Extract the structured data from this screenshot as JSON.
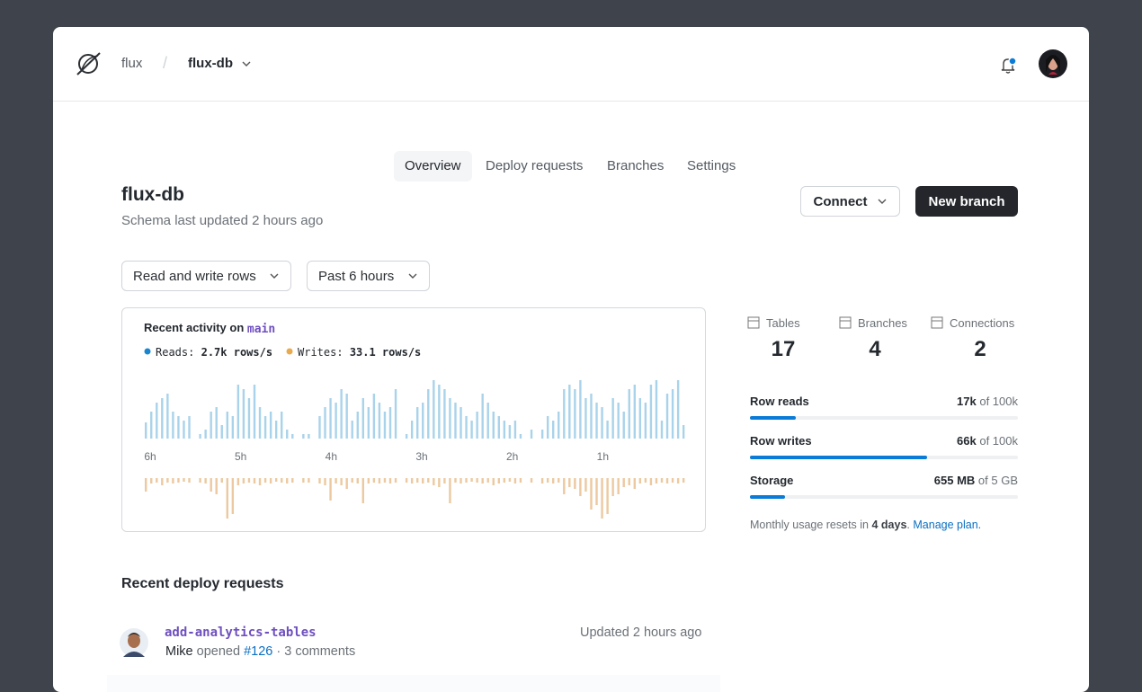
{
  "header": {
    "org": "flux",
    "database": "flux-db"
  },
  "tabs": [
    "Overview",
    "Deploy requests",
    "Branches",
    "Settings"
  ],
  "page": {
    "title": "flux-db",
    "subtitle": "Schema last updated 2 hours ago",
    "buttons": [
      "Connect",
      "New branch"
    ]
  },
  "filters": [
    "Read and write rows",
    "Past 6 hours"
  ],
  "chart_data": {
    "type": "bar",
    "title": "Recent activity on",
    "branch": "main",
    "x_labels": [
      "6h",
      "5h",
      "4h",
      "3h",
      "2h",
      "1h"
    ],
    "series": [
      {
        "name": "Reads:",
        "rate": "2.7k rows/s",
        "color": "#a9d3ea",
        "values": [
          18,
          30,
          40,
          45,
          50,
          30,
          25,
          20,
          25,
          null,
          5,
          10,
          30,
          35,
          15,
          30,
          25,
          60,
          55,
          45,
          60,
          35,
          25,
          30,
          20,
          30,
          10,
          5,
          null,
          5,
          5,
          null,
          25,
          35,
          45,
          40,
          55,
          50,
          20,
          30,
          45,
          35,
          50,
          40,
          30,
          35,
          55,
          null,
          5,
          20,
          35,
          40,
          55,
          65,
          60,
          55,
          45,
          40,
          35,
          25,
          20,
          30,
          50,
          40,
          30,
          25,
          20,
          15,
          20,
          5,
          null,
          10,
          null,
          10,
          25,
          20,
          30,
          55,
          60,
          55,
          65,
          45,
          50,
          40,
          35,
          20,
          45,
          40,
          30,
          55,
          60,
          45,
          40,
          60,
          65,
          20,
          50,
          55,
          65,
          15
        ]
      },
      {
        "name": "Writes:",
        "rate": "33.1 rows/s",
        "color": "#ecc9a0",
        "values": [
          15,
          6,
          5,
          8,
          5,
          6,
          5,
          4,
          5,
          null,
          5,
          6,
          15,
          18,
          5,
          45,
          40,
          8,
          6,
          5,
          6,
          8,
          5,
          6,
          4,
          5,
          6,
          5,
          null,
          5,
          5,
          null,
          6,
          8,
          25,
          6,
          8,
          12,
          5,
          6,
          28,
          6,
          5,
          6,
          5,
          6,
          5,
          null,
          5,
          6,
          5,
          6,
          5,
          8,
          10,
          6,
          28,
          5,
          6,
          5,
          4,
          5,
          6,
          5,
          8,
          6,
          5,
          4,
          6,
          5,
          null,
          5,
          null,
          6,
          5,
          6,
          5,
          18,
          10,
          12,
          20,
          15,
          35,
          30,
          45,
          40,
          20,
          18,
          10,
          8,
          12,
          6,
          5,
          8,
          6,
          5,
          6,
          5,
          6,
          5
        ]
      }
    ]
  },
  "stats": [
    {
      "label": "Tables",
      "value": 17
    },
    {
      "label": "Branches",
      "value": 4
    },
    {
      "label": "Connections",
      "value": 2
    }
  ],
  "usage": {
    "labels": [
      "Row reads",
      "Row writes",
      "Storage"
    ],
    "values": [
      17000,
      66000,
      655
    ],
    "value_labels": [
      "17k",
      "66k",
      "655 MB"
    ],
    "limits": [
      100000,
      100000,
      5000
    ],
    "limit_labels": [
      "of 100k",
      "of 100k",
      "of 5 GB"
    ],
    "color": "#0a7bd6"
  },
  "usage_note": {
    "text": "Monthly usage resets in",
    "highlight": "4 days",
    "after": ".",
    "link": "Manage plan."
  },
  "deploy_requests": {
    "title": "Recent deploy requests",
    "items": [
      {
        "name": "add-analytics-tables",
        "author": "Mike",
        "action": "opened",
        "number": "#126",
        "comments": "· 3 comments",
        "updated": "Updated 2 hours ago"
      }
    ]
  }
}
